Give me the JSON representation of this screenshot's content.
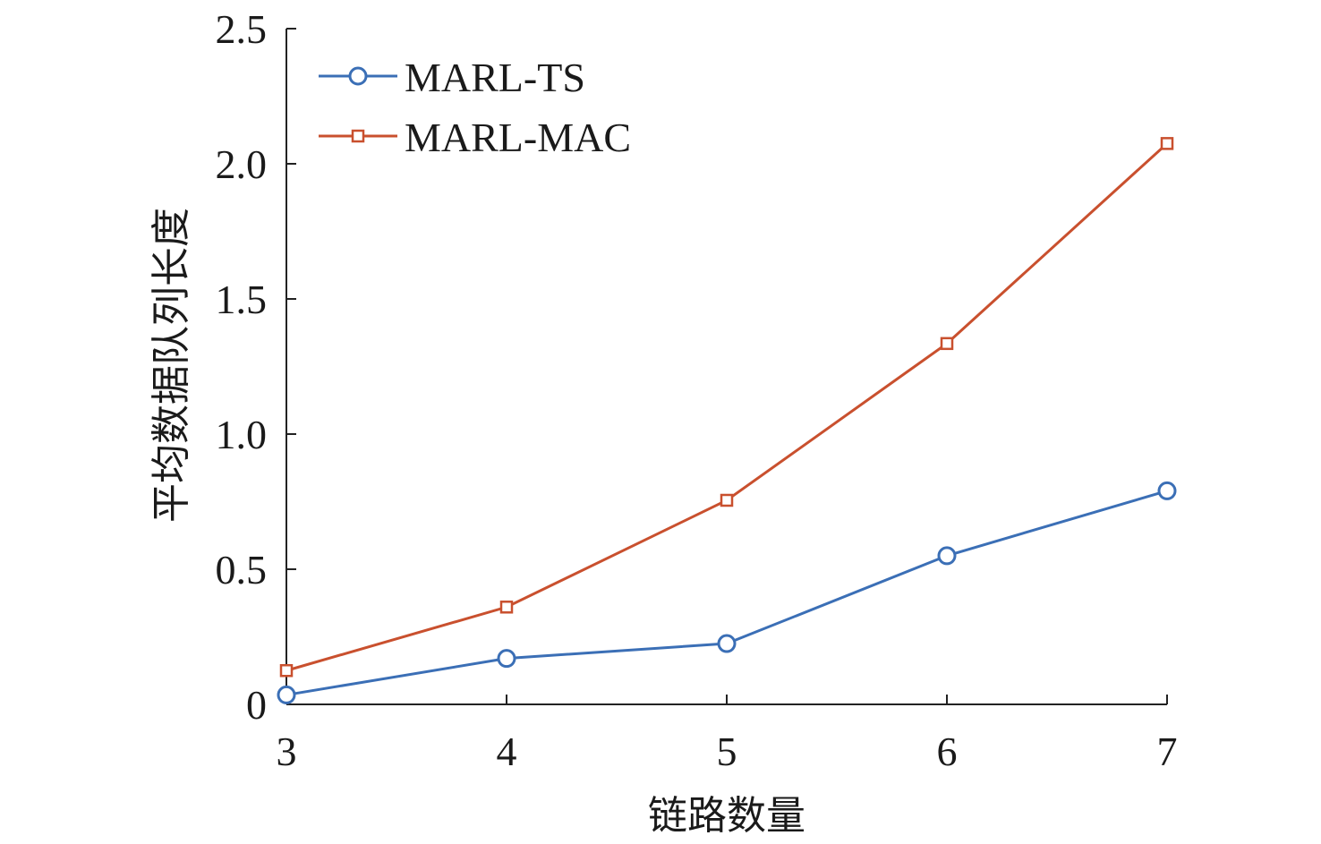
{
  "chart_data": {
    "type": "line",
    "title": "",
    "xlabel": "链路数量",
    "ylabel": "平均数据队列长度",
    "x": [
      3,
      4,
      5,
      6,
      7
    ],
    "x_ticks": [
      "3",
      "4",
      "5",
      "6",
      "7"
    ],
    "xlim": [
      3,
      7
    ],
    "ylim": [
      0,
      2.5
    ],
    "y_ticks": [
      "0",
      "0.5",
      "1.0",
      "1.5",
      "2.0",
      "2.5"
    ],
    "y_tick_values": [
      0,
      0.5,
      1.0,
      1.5,
      2.0,
      2.5
    ],
    "grid": false,
    "legend_position": "top-left",
    "series": [
      {
        "name": "MARL-TS",
        "marker": "circle",
        "color": "#3b6fb6",
        "values": [
          0.035,
          0.17,
          0.225,
          0.55,
          0.79
        ]
      },
      {
        "name": "MARL-MAC",
        "marker": "square",
        "color": "#c9502e",
        "values": [
          0.125,
          0.36,
          0.755,
          1.335,
          2.075
        ]
      }
    ]
  }
}
